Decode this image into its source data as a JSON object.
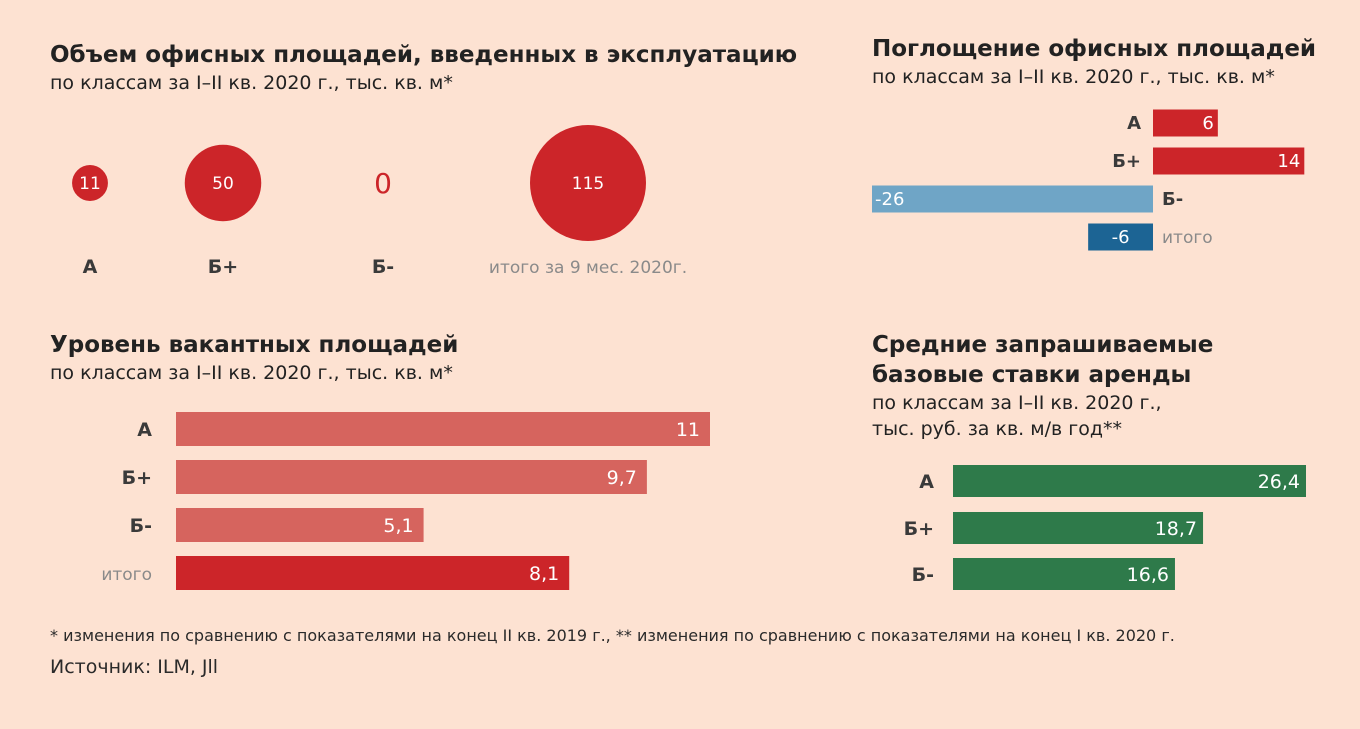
{
  "colors": {
    "background": "#fde2d2",
    "red": "#cc2529",
    "light_red": "#d6645e",
    "light_blue": "#6fa5c6",
    "dark_blue": "#1c6494",
    "green": "#2e7a4a"
  },
  "panels": {
    "volume": {
      "title": "Объем офисных площадей, введенных в эксплуатацию",
      "subtitle": "по классам за I–II кв. 2020 г., тыс. кв. м*"
    },
    "absorption": {
      "title": "Поглощение офисных площадей",
      "subtitle": "по классам за I–II кв. 2020 г., тыс. кв. м*"
    },
    "vacancy": {
      "title": "Уровень вакантных площадей",
      "subtitle": "по классам за I–II кв. 2020 г., тыс. кв. м*"
    },
    "rates": {
      "title_line1": "Средние запрашиваемые",
      "title_line2": "базовые ставки аренды",
      "subtitle_line1": "по классам за I–II кв. 2020 г.,",
      "subtitle_line2": "тыс. руб. за кв. м/в год**"
    }
  },
  "chart_data": [
    {
      "id": "volume",
      "type": "bubble",
      "categories": [
        "А",
        "Б+",
        "Б-",
        "итого за 9 мес. 2020г."
      ],
      "values": [
        11,
        50,
        0,
        115
      ],
      "value_labels": [
        "11",
        "50",
        "0",
        "115"
      ]
    },
    {
      "id": "absorption",
      "type": "bar",
      "orientation": "horizontal",
      "categories": [
        "А",
        "Б+",
        "Б-",
        "итого"
      ],
      "values": [
        6,
        14,
        -26,
        -6
      ],
      "value_labels": [
        "6",
        "14",
        "-26",
        "-6"
      ]
    },
    {
      "id": "vacancy",
      "type": "bar",
      "orientation": "horizontal",
      "categories": [
        "А",
        "Б+",
        "Б-",
        "итого"
      ],
      "values": [
        11,
        9.7,
        5.1,
        8.1
      ],
      "value_labels": [
        "11",
        "9,7",
        "5,1",
        "8,1"
      ]
    },
    {
      "id": "rates",
      "type": "bar",
      "orientation": "horizontal",
      "categories": [
        "А",
        "Б+",
        "Б-"
      ],
      "values": [
        26.4,
        18.7,
        16.6
      ],
      "value_labels": [
        "26,4",
        "18,7",
        "16,6"
      ]
    }
  ],
  "footnote": "* изменения по сравнению с показателями на конец II кв. 2019 г., ** изменения по сравнению с показателями на конец I кв. 2020 г.",
  "source": "Источник: ILM, Jll"
}
